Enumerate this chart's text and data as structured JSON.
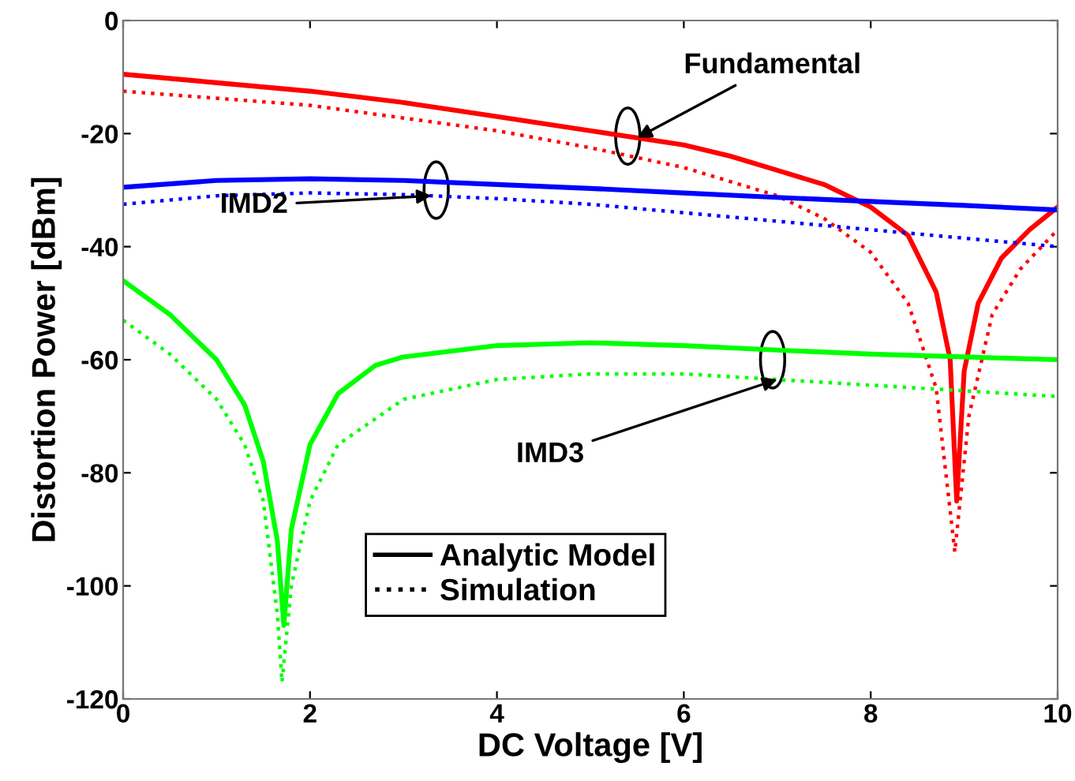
{
  "chart_data": {
    "type": "line",
    "xlabel": "DC Voltage [V]",
    "ylabel": "Distortion Power [dBm]",
    "xlim": [
      0,
      10
    ],
    "ylim": [
      -120,
      0
    ],
    "xticks": [
      0,
      2,
      4,
      6,
      8,
      10
    ],
    "yticks": [
      -120,
      -100,
      -80,
      -60,
      -40,
      -20,
      0
    ],
    "grid": false,
    "legend": "bottom",
    "marker": "none",
    "series": [
      {
        "color": "#ff0000",
        "line_style": "solid",
        "x": [
          0,
          1,
          2,
          3,
          4,
          5,
          6,
          6.5,
          7,
          7.5,
          8,
          8.4,
          8.7,
          8.85,
          8.92,
          9.0,
          9.15,
          9.4,
          9.7,
          10
        ],
        "values": [
          -9.5,
          -11,
          -12.5,
          -14.5,
          -17,
          -19.5,
          -22,
          -24,
          -26.5,
          -29,
          -33,
          -38,
          -48,
          -60,
          -85,
          -62,
          -50,
          -42,
          -37,
          -33
        ]
      },
      {
        "color": "#ff0000",
        "line_style": "dotted",
        "x": [
          0,
          2,
          4,
          5,
          6,
          7,
          7.5,
          8,
          8.4,
          8.7,
          8.9,
          9.05,
          9.3,
          9.6,
          10
        ],
        "values": [
          -12.5,
          -15,
          -19.5,
          -22.5,
          -26,
          -31,
          -35,
          -41,
          -50,
          -65,
          -94,
          -70,
          -52,
          -44,
          -37
        ]
      },
      {
        "color": "#0000ff",
        "line_style": "solid",
        "x": [
          0,
          1,
          2,
          3,
          4,
          5,
          6,
          7,
          8,
          9,
          10
        ],
        "values": [
          -29.5,
          -28.3,
          -28,
          -28.3,
          -29,
          -29.7,
          -30.5,
          -31.3,
          -32,
          -32.7,
          -33.5
        ]
      },
      {
        "color": "#0000ff",
        "line_style": "dotted",
        "x": [
          0,
          1,
          2,
          3,
          4,
          5,
          6,
          7,
          8,
          9,
          10
        ],
        "values": [
          -32.5,
          -31,
          -30.5,
          -30.8,
          -31.5,
          -32.5,
          -34,
          -35.5,
          -37,
          -38.5,
          -40
        ]
      },
      {
        "color": "#00ff00",
        "line_style": "solid",
        "x": [
          0,
          0.5,
          1,
          1.3,
          1.5,
          1.65,
          1.72,
          1.8,
          2.0,
          2.3,
          2.7,
          3,
          4,
          5,
          6,
          7,
          8,
          9,
          10
        ],
        "values": [
          -46,
          -52,
          -60,
          -68,
          -78,
          -92,
          -107,
          -90,
          -75,
          -66,
          -61,
          -59.5,
          -57.5,
          -57,
          -57.5,
          -58.3,
          -59,
          -59.5,
          -60
        ]
      },
      {
        "color": "#00ff00",
        "line_style": "dotted",
        "x": [
          0,
          0.5,
          1,
          1.3,
          1.5,
          1.65,
          1.7,
          1.8,
          2.0,
          2.3,
          3,
          4,
          5,
          6,
          7,
          8,
          9,
          10
        ],
        "values": [
          -53,
          -59,
          -67,
          -75,
          -85,
          -105,
          -117,
          -100,
          -85,
          -75,
          -67,
          -63.5,
          -62.5,
          -62.5,
          -63.5,
          -64.5,
          -65.5,
          -66.5
        ]
      },
      {
        "name": "Analytic Model",
        "color": "#000000",
        "line_style": "solid"
      },
      {
        "name": "Simulation",
        "color": "#000000",
        "line_style": "dotted"
      }
    ],
    "annotations": [
      {
        "text": "Fundamental",
        "x": 5.5,
        "y": -20.75
      },
      {
        "text": "IMD2",
        "x": 3.3,
        "y": -31.0
      },
      {
        "text": "IMD3",
        "x": 7,
        "y": -63.5
      }
    ]
  }
}
